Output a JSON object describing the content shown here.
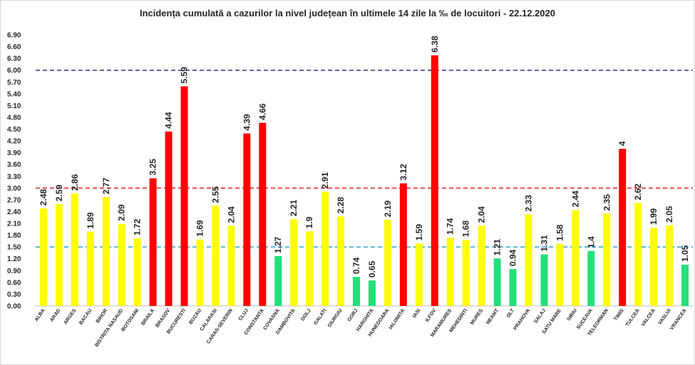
{
  "chart_data": {
    "type": "bar",
    "title": "Incidența cumulată a cazurilor la nivel județean în ultimele 14 zile la ‰ de locuitori - 22.12.2020",
    "xlabel": "",
    "ylabel": "",
    "ylim": [
      0,
      6.9
    ],
    "yticks": [
      "0.00",
      "0.30",
      "0.60",
      "0.90",
      "1.20",
      "1.50",
      "1.80",
      "2.10",
      "2.40",
      "2.70",
      "3.00",
      "3.30",
      "3.60",
      "3.90",
      "4.20",
      "4.50",
      "4.80",
      "5.10",
      "5.40",
      "5.70",
      "6.00",
      "6.30",
      "6.60",
      "6.90"
    ],
    "grid": false,
    "categories": [
      "ALBA",
      "ARAD",
      "ARGES",
      "BACAU",
      "BIHOR",
      "BISTRITA NASAUD",
      "BOTOSANI",
      "BRAILA",
      "BRASOV",
      "BUCURESTI",
      "BUZAU",
      "CALARASI",
      "CARAS-SEVERIN",
      "CLUJ",
      "CONSTANTA",
      "COVASNA",
      "DAMBOVITA",
      "DOLJ",
      "GALATI",
      "GIURGIU",
      "GORJ",
      "HARGHITA",
      "HUNEDOARA",
      "IALOMITA",
      "IASI",
      "ILFOV",
      "MARAMURES",
      "MEHEDINTI",
      "MURES",
      "NEAMT",
      "OLT",
      "PRAHOVA",
      "SALAJ",
      "SATU MARE",
      "SIBIU",
      "SUCEAVA",
      "TELEORMAN",
      "TIMIS",
      "TULCEA",
      "VALCEA",
      "VASLUI",
      "VRANCEA"
    ],
    "values": [
      2.48,
      2.59,
      2.86,
      1.89,
      2.77,
      2.09,
      1.72,
      3.25,
      4.44,
      5.59,
      1.69,
      2.55,
      2.04,
      4.39,
      4.66,
      1.27,
      2.21,
      1.9,
      2.91,
      2.28,
      0.74,
      0.65,
      2.19,
      3.12,
      1.59,
      6.38,
      1.74,
      1.68,
      2.04,
      1.21,
      0.94,
      2.33,
      1.31,
      1.58,
      2.44,
      1.4,
      2.35,
      4,
      2.62,
      1.99,
      2.05,
      1.05
    ],
    "data_labels": [
      "2.48",
      "2.59",
      "2.86",
      "1.89",
      "2.77",
      "2.09",
      "1.72",
      "3.25",
      "4.44",
      "5.59",
      "1.69",
      "2.55",
      "2.04",
      "4.39",
      "4.66",
      "1.27",
      "2.21",
      "1.9",
      "2.91",
      "2.28",
      "0.74",
      "0.65",
      "2.19",
      "3.12",
      "1.59",
      "6.38",
      "1.74",
      "1.68",
      "2.04",
      "1.21",
      "0.94",
      "2.33",
      "1.31",
      "1.58",
      "2.44",
      "1.4",
      "2.35",
      "4",
      "2.62",
      "1.99",
      "2.05",
      "1.05"
    ],
    "reference_lines": [
      {
        "value": 6.0,
        "color": "#3b2c8f",
        "style": "dashed"
      },
      {
        "value": 3.0,
        "color": "#e02020",
        "style": "dashed"
      },
      {
        "value": 1.5,
        "color": "#2ba6c9",
        "style": "dashed"
      }
    ],
    "colors": {
      "green": "#22e07a",
      "yellow": "#ffff00",
      "red": "#ff0000"
    }
  }
}
